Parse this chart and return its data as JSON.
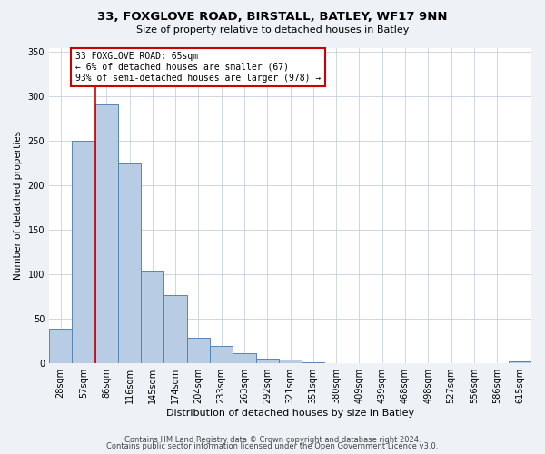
{
  "title": "33, FOXGLOVE ROAD, BIRSTALL, BATLEY, WF17 9NN",
  "subtitle": "Size of property relative to detached houses in Batley",
  "xlabel": "Distribution of detached houses by size in Batley",
  "ylabel": "Number of detached properties",
  "bar_labels": [
    "28sqm",
    "57sqm",
    "86sqm",
    "116sqm",
    "145sqm",
    "174sqm",
    "204sqm",
    "233sqm",
    "263sqm",
    "292sqm",
    "321sqm",
    "351sqm",
    "380sqm",
    "409sqm",
    "439sqm",
    "468sqm",
    "498sqm",
    "527sqm",
    "556sqm",
    "586sqm",
    "615sqm"
  ],
  "bar_heights": [
    39,
    250,
    291,
    225,
    103,
    77,
    29,
    19,
    11,
    5,
    4,
    1,
    0,
    0,
    0,
    0,
    0,
    0,
    0,
    0,
    2
  ],
  "bar_color": "#b8cce4",
  "bar_edge_color": "#5585b8",
  "property_line_label": "33 FOXGLOVE ROAD: 65sqm",
  "annotation_line1": "← 6% of detached houses are smaller (67)",
  "annotation_line2": "93% of semi-detached houses are larger (978) →",
  "annotation_box_color": "#ffffff",
  "annotation_box_edge_color": "#cc0000",
  "vline_color": "#cc0000",
  "ylim": [
    0,
    355
  ],
  "yticks": [
    0,
    50,
    100,
    150,
    200,
    250,
    300,
    350
  ],
  "footer1": "Contains HM Land Registry data © Crown copyright and database right 2024.",
  "footer2": "Contains public sector information licensed under the Open Government Licence v3.0.",
  "bg_color": "#eef2f7",
  "plot_bg_color": "#ffffff",
  "grid_color": "#c5d0dd",
  "title_fontsize": 9.5,
  "subtitle_fontsize": 8,
  "tick_fontsize": 7,
  "ylabel_fontsize": 7.5,
  "xlabel_fontsize": 8,
  "annot_fontsize": 7,
  "footer_fontsize": 6
}
